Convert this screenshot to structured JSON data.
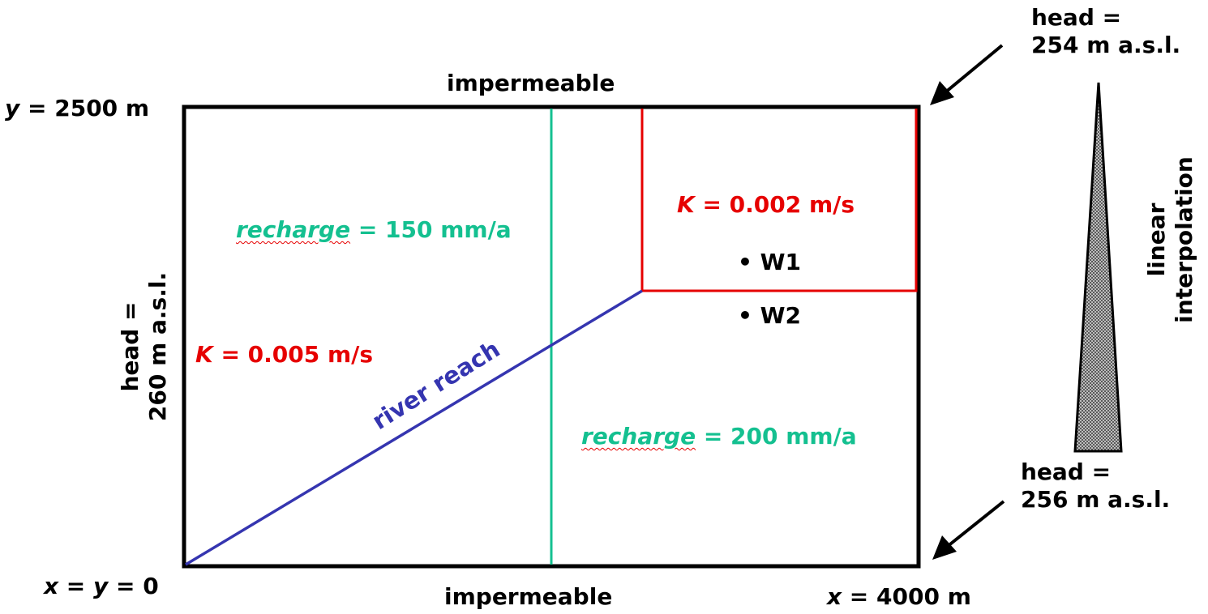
{
  "domain_box": {
    "top_boundary": "impermeable",
    "bottom_boundary": "impermeable",
    "y_max_label": {
      "var": "y",
      "rest": " = 2500 m"
    },
    "origin_label": {
      "var1": "x",
      "mid": " = ",
      "var2": "y",
      "rest": " = 0"
    },
    "x_max_label": {
      "var": "x",
      "rest": " = 4000 m"
    }
  },
  "left_head": {
    "line1": "head =",
    "line2": "260 m a.s.l."
  },
  "top_right_head": {
    "line1": "head =",
    "line2": "254 m a.s.l."
  },
  "bottom_right_head": {
    "line1": "head =",
    "line2": "256 m a.s.l."
  },
  "interpolation": {
    "line1": "linear",
    "line2": "interpolation"
  },
  "zones": {
    "k_main": {
      "var": "K",
      "rest": " = 0.005 m/s"
    },
    "k_inset": {
      "var": "K",
      "rest": " = 0.002 m/s"
    },
    "recharge_left": {
      "word": "recharge",
      "rest": " = 150 mm/a"
    },
    "recharge_right": {
      "word": "recharge",
      "rest": " = 200 mm/a"
    }
  },
  "river": {
    "label": "river reach"
  },
  "wells": [
    {
      "bullet": "•",
      "name": "W1"
    },
    {
      "bullet": "•",
      "name": "W2"
    }
  ],
  "colors": {
    "boundary": "#000000",
    "conductivity_zone": "#e60000",
    "recharge_divide": "#14c090",
    "river": "#3535b0"
  }
}
